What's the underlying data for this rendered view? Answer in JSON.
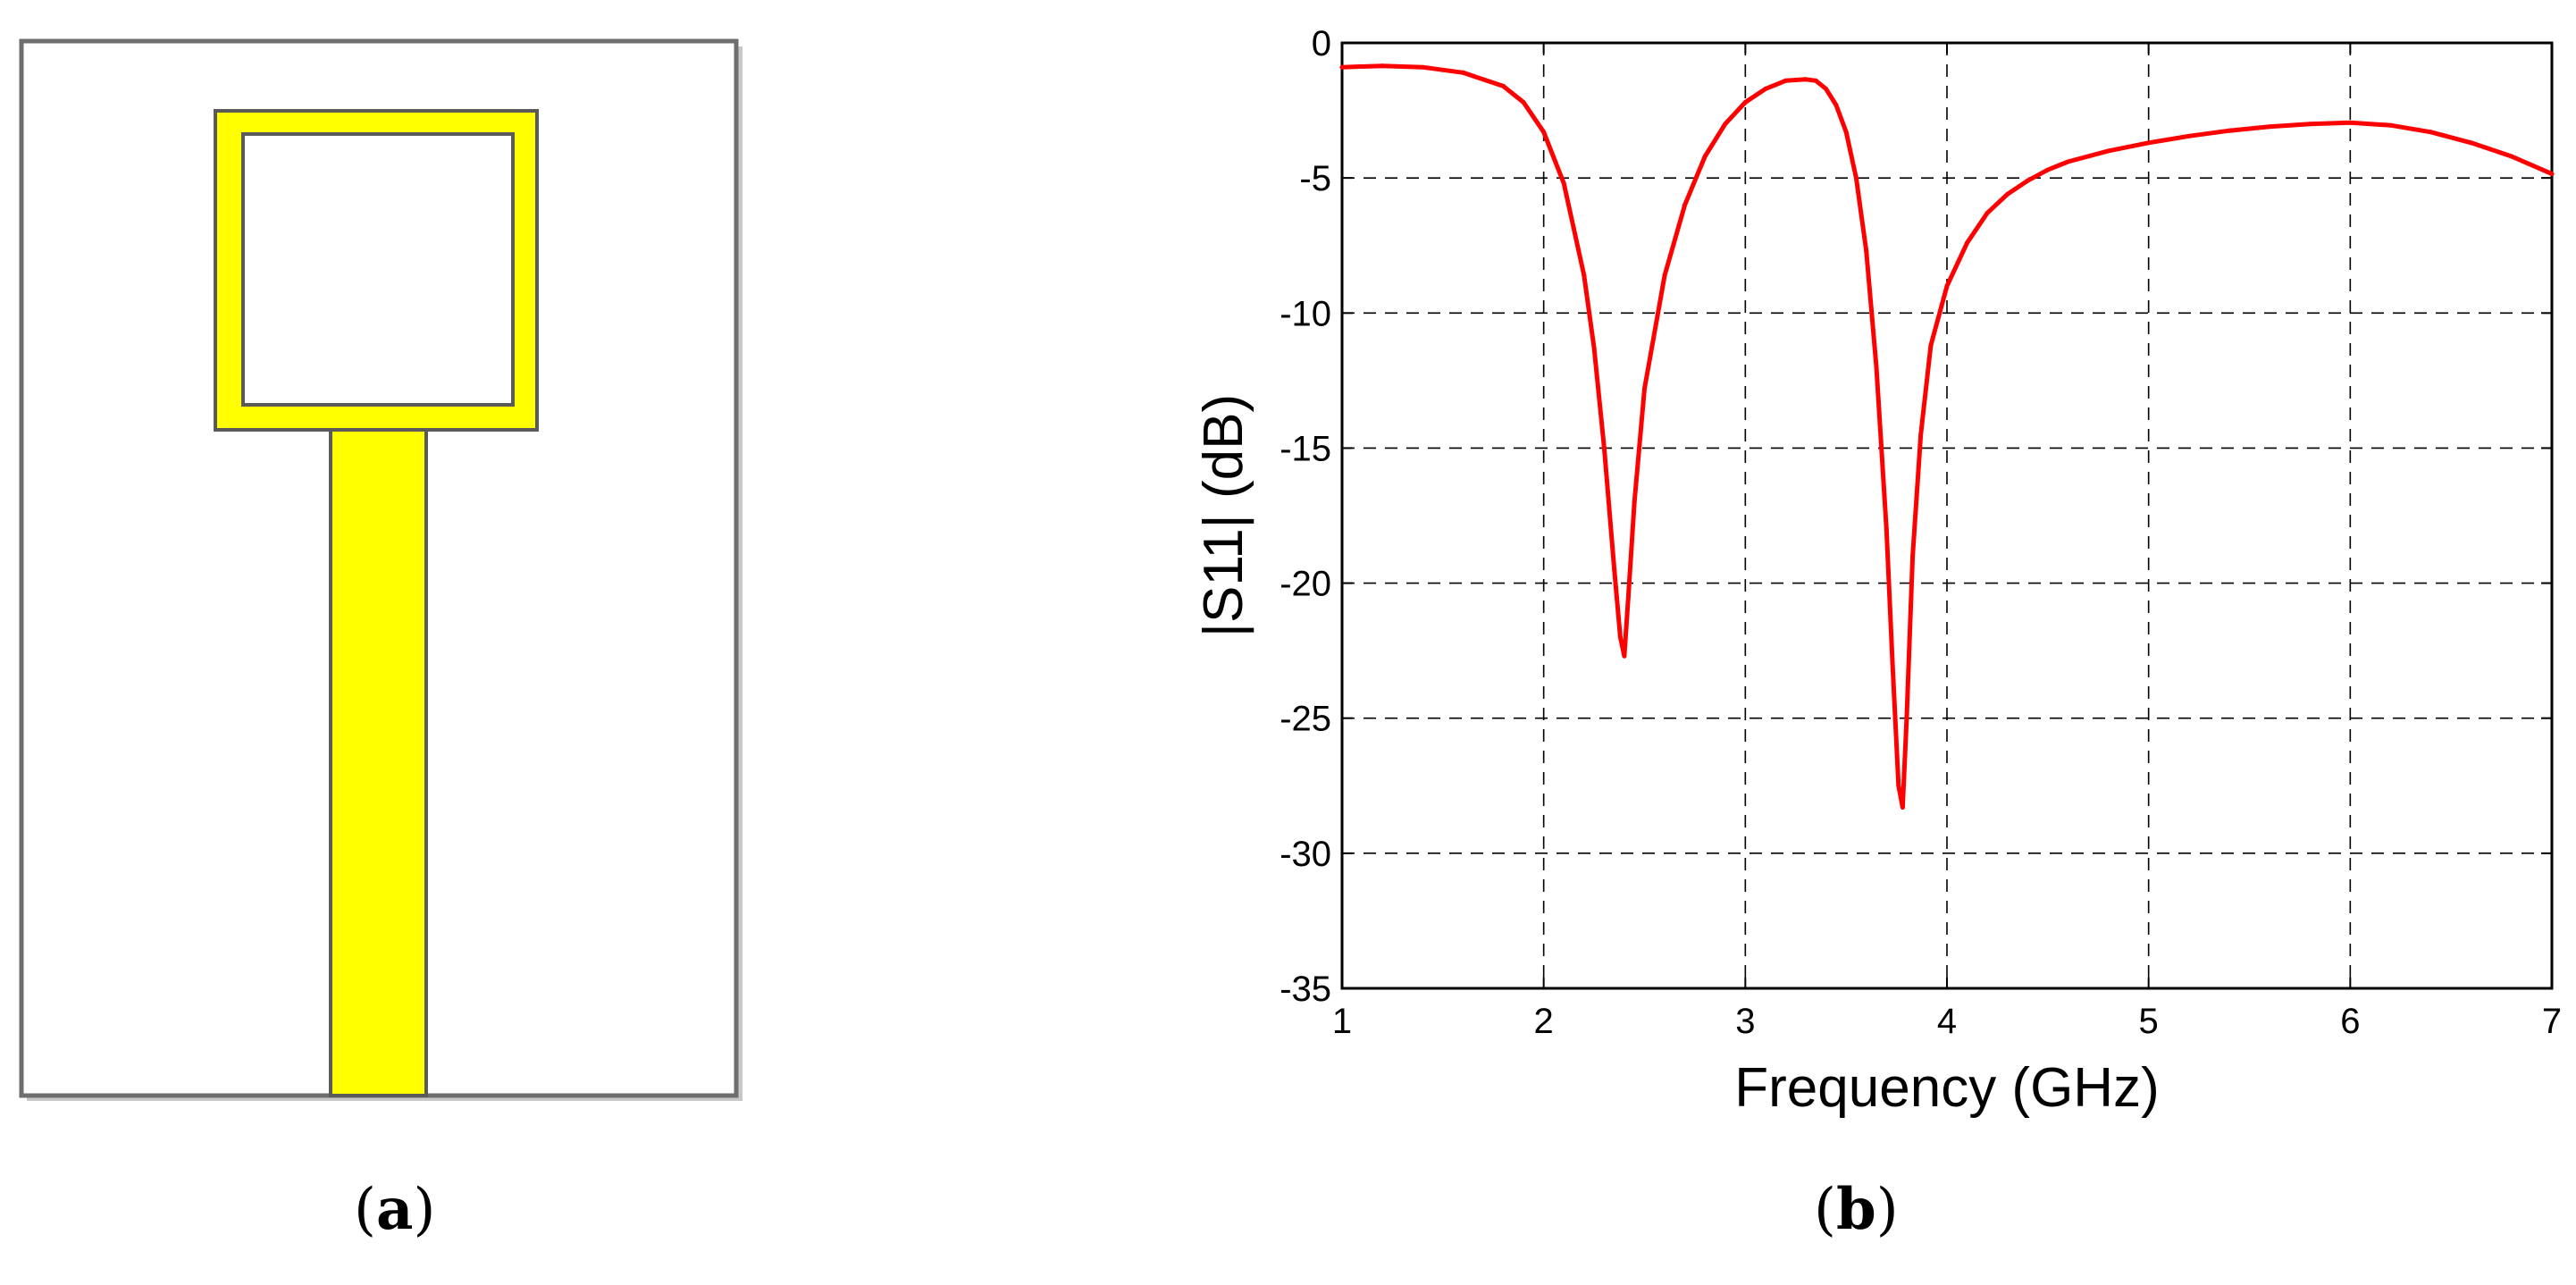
{
  "panels": {
    "a": {
      "label": "(a)",
      "letter": "a"
    },
    "b": {
      "label": "(b)",
      "letter": "b"
    }
  },
  "antenna": {
    "substrate_color": "#ffffff",
    "metal_color": "#ffff00",
    "outline_color": "#555555"
  },
  "chart_data": {
    "type": "line",
    "title": "",
    "xlabel": "Frequency (GHz)",
    "ylabel": "|S11| (dB)",
    "xlim": [
      1,
      7
    ],
    "ylim": [
      -35,
      0
    ],
    "xticks": [
      1,
      2,
      3,
      4,
      5,
      6,
      7
    ],
    "yticks": [
      0,
      -5,
      -10,
      -15,
      -20,
      -25,
      -30,
      -35
    ],
    "grid": true,
    "grid_style": "dashed",
    "series": [
      {
        "name": "|S11|",
        "color": "#ff0000",
        "x": [
          1.0,
          1.2,
          1.4,
          1.6,
          1.8,
          1.9,
          2.0,
          2.1,
          2.2,
          2.25,
          2.3,
          2.35,
          2.38,
          2.4,
          2.42,
          2.45,
          2.5,
          2.6,
          2.7,
          2.8,
          2.9,
          3.0,
          3.1,
          3.2,
          3.3,
          3.35,
          3.4,
          3.45,
          3.5,
          3.55,
          3.6,
          3.65,
          3.7,
          3.73,
          3.76,
          3.78,
          3.8,
          3.83,
          3.87,
          3.92,
          4.0,
          4.1,
          4.2,
          4.3,
          4.4,
          4.5,
          4.6,
          4.8,
          5.0,
          5.2,
          5.4,
          5.6,
          5.8,
          6.0,
          6.2,
          6.4,
          6.6,
          6.8,
          7.0
        ],
        "y": [
          -0.9,
          -0.85,
          -0.9,
          -1.1,
          -1.6,
          -2.2,
          -3.3,
          -5.2,
          -8.6,
          -11.3,
          -15.0,
          -19.5,
          -22.0,
          -22.7,
          -20.5,
          -17.0,
          -12.8,
          -8.6,
          -6.0,
          -4.2,
          -3.0,
          -2.2,
          -1.7,
          -1.4,
          -1.35,
          -1.4,
          -1.7,
          -2.3,
          -3.3,
          -5.0,
          -7.7,
          -12.0,
          -18.0,
          -23.0,
          -27.5,
          -28.3,
          -25.0,
          -19.0,
          -14.5,
          -11.2,
          -9.0,
          -7.4,
          -6.3,
          -5.6,
          -5.1,
          -4.7,
          -4.4,
          -4.0,
          -3.7,
          -3.45,
          -3.25,
          -3.1,
          -3.0,
          -2.95,
          -3.05,
          -3.3,
          -3.7,
          -4.2,
          -4.85
        ]
      }
    ]
  }
}
